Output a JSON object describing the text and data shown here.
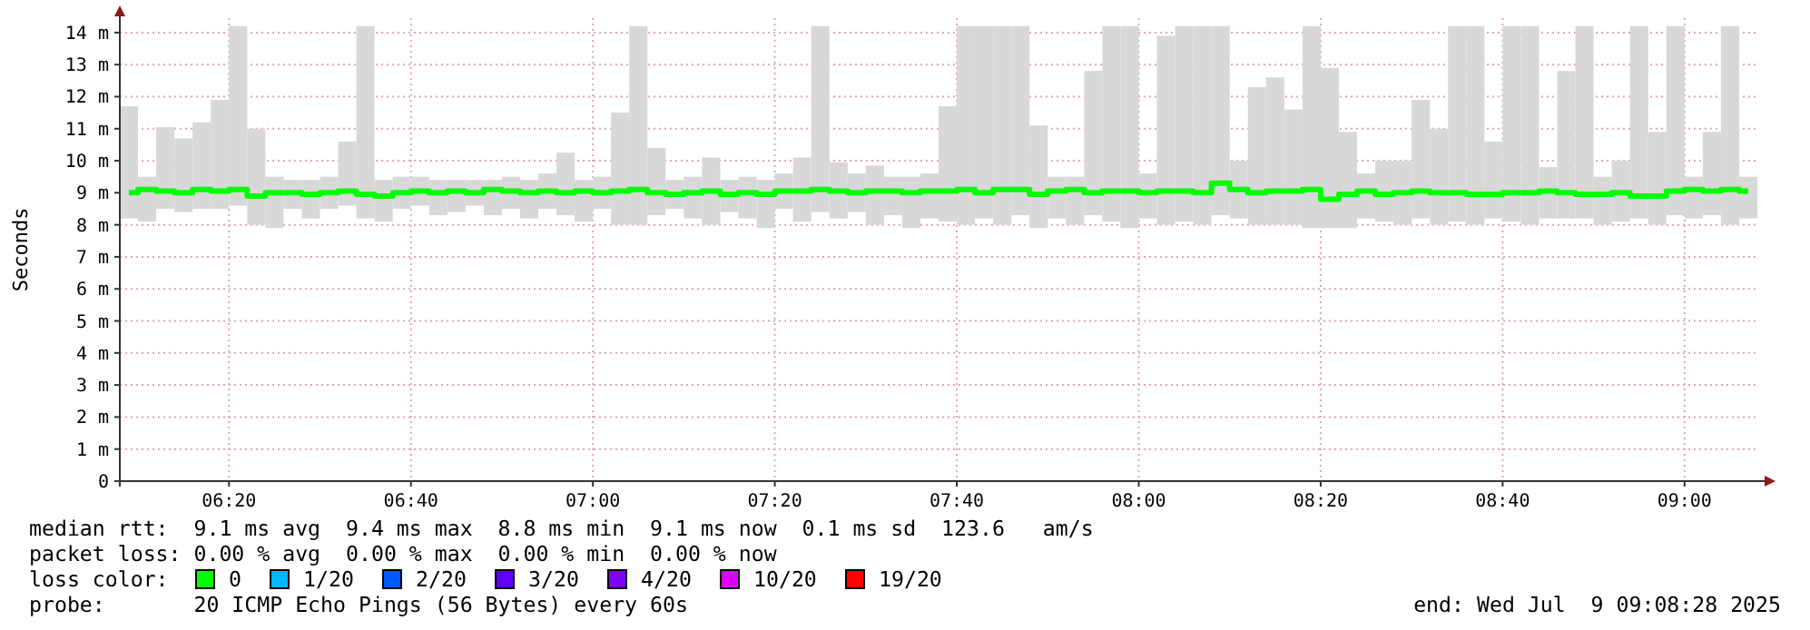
{
  "chart_data": {
    "type": "bar",
    "ylabel": "Seconds",
    "legend_title": "loss color:",
    "legend": "bottom",
    "grid": true,
    "xlim": [
      "2025-07-09T06:08",
      "2025-07-09T09:08"
    ],
    "xticks": [
      {
        "value": "2025-07-09T06:20",
        "label": "06:20"
      },
      {
        "value": "2025-07-09T06:40",
        "label": "06:40"
      },
      {
        "value": "2025-07-09T07:00",
        "label": "07:00"
      },
      {
        "value": "2025-07-09T07:20",
        "label": "07:20"
      },
      {
        "value": "2025-07-09T07:40",
        "label": "07:40"
      },
      {
        "value": "2025-07-09T08:00",
        "label": "08:00"
      },
      {
        "value": "2025-07-09T08:20",
        "label": "08:20"
      },
      {
        "value": "2025-07-09T08:40",
        "label": "08:40"
      },
      {
        "value": "2025-07-09T09:00",
        "label": "09:00"
      }
    ],
    "ylim": [
      0,
      14.45
    ],
    "yticks": [
      0,
      {
        "value": 1,
        "label": "1 m"
      },
      {
        "value": 2,
        "label": "2 m"
      },
      {
        "value": 3,
        "label": "3 m"
      },
      {
        "value": 4,
        "label": "4 m"
      },
      {
        "value": 5,
        "label": "5 m"
      },
      {
        "value": 6,
        "label": "6 m"
      },
      {
        "value": 7,
        "label": "7 m"
      },
      {
        "value": 8,
        "label": "8 m"
      },
      {
        "value": 9,
        "label": "9 m"
      },
      {
        "value": 10,
        "label": "10 m"
      },
      {
        "value": 11,
        "label": "11 m"
      },
      {
        "value": 12,
        "label": "12 m"
      },
      {
        "value": 13,
        "label": "13 m"
      },
      {
        "value": 14,
        "label": "14 m"
      }
    ],
    "x": [
      "2025-07-09T06:09",
      "2025-07-09T06:11",
      "2025-07-09T06:13",
      "2025-07-09T06:15",
      "2025-07-09T06:17",
      "2025-07-09T06:19",
      "2025-07-09T06:21",
      "2025-07-09T06:23",
      "2025-07-09T06:25",
      "2025-07-09T06:27",
      "2025-07-09T06:29",
      "2025-07-09T06:31",
      "2025-07-09T06:33",
      "2025-07-09T06:35",
      "2025-07-09T06:37",
      "2025-07-09T06:39",
      "2025-07-09T06:41",
      "2025-07-09T06:43",
      "2025-07-09T06:45",
      "2025-07-09T06:47",
      "2025-07-09T06:49",
      "2025-07-09T06:51",
      "2025-07-09T06:53",
      "2025-07-09T06:55",
      "2025-07-09T06:57",
      "2025-07-09T06:59",
      "2025-07-09T07:01",
      "2025-07-09T07:03",
      "2025-07-09T07:05",
      "2025-07-09T07:07",
      "2025-07-09T07:09",
      "2025-07-09T07:11",
      "2025-07-09T07:13",
      "2025-07-09T07:15",
      "2025-07-09T07:17",
      "2025-07-09T07:19",
      "2025-07-09T07:21",
      "2025-07-09T07:23",
      "2025-07-09T07:25",
      "2025-07-09T07:27",
      "2025-07-09T07:29",
      "2025-07-09T07:31",
      "2025-07-09T07:33",
      "2025-07-09T07:35",
      "2025-07-09T07:37",
      "2025-07-09T07:39",
      "2025-07-09T07:41",
      "2025-07-09T07:43",
      "2025-07-09T07:45",
      "2025-07-09T07:47",
      "2025-07-09T07:49",
      "2025-07-09T07:51",
      "2025-07-09T07:53",
      "2025-07-09T07:55",
      "2025-07-09T07:57",
      "2025-07-09T07:59",
      "2025-07-09T08:01",
      "2025-07-09T08:03",
      "2025-07-09T08:05",
      "2025-07-09T08:07",
      "2025-07-09T08:09",
      "2025-07-09T08:11",
      "2025-07-09T08:13",
      "2025-07-09T08:15",
      "2025-07-09T08:17",
      "2025-07-09T08:19",
      "2025-07-09T08:21",
      "2025-07-09T08:23",
      "2025-07-09T08:25",
      "2025-07-09T08:27",
      "2025-07-09T08:29",
      "2025-07-09T08:31",
      "2025-07-09T08:33",
      "2025-07-09T08:35",
      "2025-07-09T08:37",
      "2025-07-09T08:39",
      "2025-07-09T08:41",
      "2025-07-09T08:43",
      "2025-07-09T08:45",
      "2025-07-09T08:47",
      "2025-07-09T08:49",
      "2025-07-09T08:51",
      "2025-07-09T08:53",
      "2025-07-09T08:55",
      "2025-07-09T08:57",
      "2025-07-09T08:59",
      "2025-07-09T09:01",
      "2025-07-09T09:03",
      "2025-07-09T09:05",
      "2025-07-09T09:07"
    ],
    "series": [
      {
        "color": "#d8d8d8",
        "base": [
          8.2,
          8.1,
          8.5,
          8.4,
          8.5,
          8.5,
          8.6,
          8.0,
          7.9,
          8.5,
          8.2,
          8.5,
          8.6,
          8.2,
          8.1,
          8.5,
          8.6,
          8.3,
          8.4,
          8.6,
          8.3,
          8.5,
          8.2,
          8.5,
          8.3,
          8.1,
          8.5,
          8.0,
          8.0,
          8.3,
          8.5,
          8.2,
          8.0,
          8.4,
          8.2,
          7.9,
          8.5,
          8.1,
          8.4,
          8.2,
          8.4,
          8.0,
          8.3,
          7.9,
          8.2,
          8.1,
          8.0,
          8.2,
          8.0,
          8.3,
          7.9,
          8.2,
          8.0,
          8.3,
          8.1,
          7.9,
          8.2,
          8.0,
          8.1,
          8.0,
          8.3,
          8.2,
          8.0,
          8.0,
          8.0,
          7.9,
          7.9,
          7.9,
          8.2,
          8.1,
          8.0,
          8.2,
          8.0,
          8.1,
          8.0,
          8.2,
          8.1,
          8.0,
          8.2,
          8.2,
          8.2,
          8.0,
          8.1,
          8.2,
          8.0,
          8.3,
          8.2,
          8.3,
          8.0,
          8.2
        ],
        "values": [
          3.5,
          1.4,
          2.55,
          2.3,
          2.7,
          3.4,
          5.6,
          3.0,
          1.6,
          0.9,
          1.2,
          1.0,
          2.0,
          6.0,
          1.3,
          1.0,
          0.9,
          1.1,
          1.0,
          0.8,
          1.1,
          1.0,
          1.2,
          1.1,
          1.95,
          1.3,
          1.0,
          3.5,
          6.2,
          2.1,
          0.9,
          1.3,
          2.1,
          1.0,
          1.3,
          1.5,
          1.1,
          2.0,
          5.8,
          1.75,
          1.2,
          1.85,
          1.2,
          1.6,
          1.4,
          3.6,
          6.2,
          6.0,
          6.2,
          5.9,
          3.2,
          1.3,
          1.5,
          4.5,
          6.1,
          6.3,
          1.4,
          5.9,
          6.1,
          6.2,
          5.9,
          1.8,
          4.3,
          4.6,
          3.6,
          6.3,
          5.0,
          3.0,
          1.4,
          1.9,
          2.0,
          3.7,
          3.0,
          6.1,
          6.2,
          2.4,
          6.1,
          6.2,
          1.6,
          4.6,
          6.0,
          1.5,
          1.9,
          6.0,
          2.9,
          5.9,
          1.3,
          2.6,
          6.2,
          1.3
        ]
      },
      {
        "type": "step",
        "name": "0",
        "color": "#00ff00",
        "values": [
          9.0,
          9.1,
          9.05,
          9.0,
          9.1,
          9.05,
          9.1,
          8.9,
          9.0,
          9.0,
          8.95,
          9.0,
          9.05,
          8.95,
          8.9,
          9.0,
          9.05,
          9.0,
          9.05,
          9.0,
          9.1,
          9.05,
          9.0,
          9.05,
          9.0,
          9.05,
          9.0,
          9.05,
          9.1,
          9.0,
          8.95,
          9.0,
          9.05,
          8.95,
          9.0,
          8.95,
          9.05,
          9.05,
          9.1,
          9.05,
          9.0,
          9.05,
          9.05,
          9.0,
          9.05,
          9.05,
          9.1,
          9.0,
          9.1,
          9.1,
          8.95,
          9.05,
          9.1,
          9.0,
          9.05,
          9.05,
          9.0,
          9.05,
          9.05,
          9.0,
          9.3,
          9.1,
          9.0,
          9.05,
          9.05,
          9.1,
          8.8,
          8.95,
          9.05,
          8.95,
          9.0,
          9.05,
          9.0,
          9.0,
          8.95,
          8.95,
          9.0,
          9.0,
          9.05,
          9.0,
          8.95,
          8.95,
          9.0,
          8.9,
          8.9,
          9.05,
          9.1,
          9.05,
          9.1,
          9.05
        ]
      },
      {
        "type": "step",
        "name": "1/20",
        "color": "#00b8ff",
        "values": [
          null,
          null,
          null,
          null,
          null,
          null,
          null,
          null,
          null,
          null,
          null,
          null,
          null,
          null,
          null,
          null,
          null,
          null,
          null,
          null,
          null,
          null,
          null,
          null,
          null,
          null,
          null,
          null,
          null,
          null,
          null,
          null,
          null,
          null,
          null,
          null,
          null,
          null,
          null,
          null,
          null,
          null,
          null,
          null,
          null,
          null,
          null,
          null,
          null,
          null,
          null,
          null,
          null,
          null,
          null,
          null,
          null,
          null,
          null,
          null,
          null,
          null,
          null,
          null,
          null,
          null,
          null,
          null,
          null,
          null,
          null,
          null,
          null,
          null,
          null,
          null,
          null,
          null,
          null,
          null,
          null,
          null,
          null,
          null,
          null,
          null,
          null,
          null,
          null,
          null
        ]
      },
      {
        "type": "step",
        "name": "2/20",
        "color": "#0059ff",
        "values": [
          null,
          null,
          null,
          null,
          null,
          null,
          null,
          null,
          null,
          null,
          null,
          null,
          null,
          null,
          null,
          null,
          null,
          null,
          null,
          null,
          null,
          null,
          null,
          null,
          null,
          null,
          null,
          null,
          null,
          null,
          null,
          null,
          null,
          null,
          null,
          null,
          null,
          null,
          null,
          null,
          null,
          null,
          null,
          null,
          null,
          null,
          null,
          null,
          null,
          null,
          null,
          null,
          null,
          null,
          null,
          null,
          null,
          null,
          null,
          null,
          null,
          null,
          null,
          null,
          null,
          null,
          null,
          null,
          null,
          null,
          null,
          null,
          null,
          null,
          null,
          null,
          null,
          null,
          null,
          null,
          null,
          null,
          null,
          null,
          null,
          null,
          null,
          null,
          null,
          null
        ]
      },
      {
        "type": "step",
        "name": "3/20",
        "color": "#5e00ff",
        "values": [
          null,
          null,
          null,
          null,
          null,
          null,
          null,
          null,
          null,
          null,
          null,
          null,
          null,
          null,
          null,
          null,
          null,
          null,
          null,
          null,
          null,
          null,
          null,
          null,
          null,
          null,
          null,
          null,
          null,
          null,
          null,
          null,
          null,
          null,
          null,
          null,
          null,
          null,
          null,
          null,
          null,
          null,
          null,
          null,
          null,
          null,
          null,
          null,
          null,
          null,
          null,
          null,
          null,
          null,
          null,
          null,
          null,
          null,
          null,
          null,
          null,
          null,
          null,
          null,
          null,
          null,
          null,
          null,
          null,
          null,
          null,
          null,
          null,
          null,
          null,
          null,
          null,
          null,
          null,
          null,
          null,
          null,
          null,
          null,
          null,
          null,
          null,
          null,
          null,
          null
        ]
      },
      {
        "type": "step",
        "name": "4/20",
        "color": "#7e00ff",
        "values": [
          null,
          null,
          null,
          null,
          null,
          null,
          null,
          null,
          null,
          null,
          null,
          null,
          null,
          null,
          null,
          null,
          null,
          null,
          null,
          null,
          null,
          null,
          null,
          null,
          null,
          null,
          null,
          null,
          null,
          null,
          null,
          null,
          null,
          null,
          null,
          null,
          null,
          null,
          null,
          null,
          null,
          null,
          null,
          null,
          null,
          null,
          null,
          null,
          null,
          null,
          null,
          null,
          null,
          null,
          null,
          null,
          null,
          null,
          null,
          null,
          null,
          null,
          null,
          null,
          null,
          null,
          null,
          null,
          null,
          null,
          null,
          null,
          null,
          null,
          null,
          null,
          null,
          null,
          null,
          null,
          null,
          null,
          null,
          null,
          null,
          null,
          null,
          null,
          null,
          null
        ]
      },
      {
        "type": "step",
        "name": "10/20",
        "color": "#dd00ff",
        "values": [
          null,
          null,
          null,
          null,
          null,
          null,
          null,
          null,
          null,
          null,
          null,
          null,
          null,
          null,
          null,
          null,
          null,
          null,
          null,
          null,
          null,
          null,
          null,
          null,
          null,
          null,
          null,
          null,
          null,
          null,
          null,
          null,
          null,
          null,
          null,
          null,
          null,
          null,
          null,
          null,
          null,
          null,
          null,
          null,
          null,
          null,
          null,
          null,
          null,
          null,
          null,
          null,
          null,
          null,
          null,
          null,
          null,
          null,
          null,
          null,
          null,
          null,
          null,
          null,
          null,
          null,
          null,
          null,
          null,
          null,
          null,
          null,
          null,
          null,
          null,
          null,
          null,
          null,
          null,
          null,
          null,
          null,
          null,
          null,
          null,
          null,
          null,
          null,
          null,
          null
        ]
      },
      {
        "type": "step",
        "name": "19/20",
        "color": "#ff0000",
        "values": [
          null,
          null,
          null,
          null,
          null,
          null,
          null,
          null,
          null,
          null,
          null,
          null,
          null,
          null,
          null,
          null,
          null,
          null,
          null,
          null,
          null,
          null,
          null,
          null,
          null,
          null,
          null,
          null,
          null,
          null,
          null,
          null,
          null,
          null,
          null,
          null,
          null,
          null,
          null,
          null,
          null,
          null,
          null,
          null,
          null,
          null,
          null,
          null,
          null,
          null,
          null,
          null,
          null,
          null,
          null,
          null,
          null,
          null,
          null,
          null,
          null,
          null,
          null,
          null,
          null,
          null,
          null,
          null,
          null,
          null,
          null,
          null,
          null,
          null,
          null,
          null,
          null,
          null,
          null,
          null,
          null,
          null,
          null,
          null,
          null,
          null,
          null,
          null,
          null,
          null
        ]
      }
    ],
    "annotations": [
      "median rtt:  9.1 ms avg  9.4 ms max  8.8 ms min  9.1 ms now  0.1 ms sd  123.6   am/s",
      "packet loss: 0.00 % avg  0.00 % max  0.00 % min  0.00 % now",
      "probe:       20 ICMP Echo Pings (56 Bytes) every 60s",
      "end: Wed Jul  9 09:08:28 2025"
    ]
  }
}
